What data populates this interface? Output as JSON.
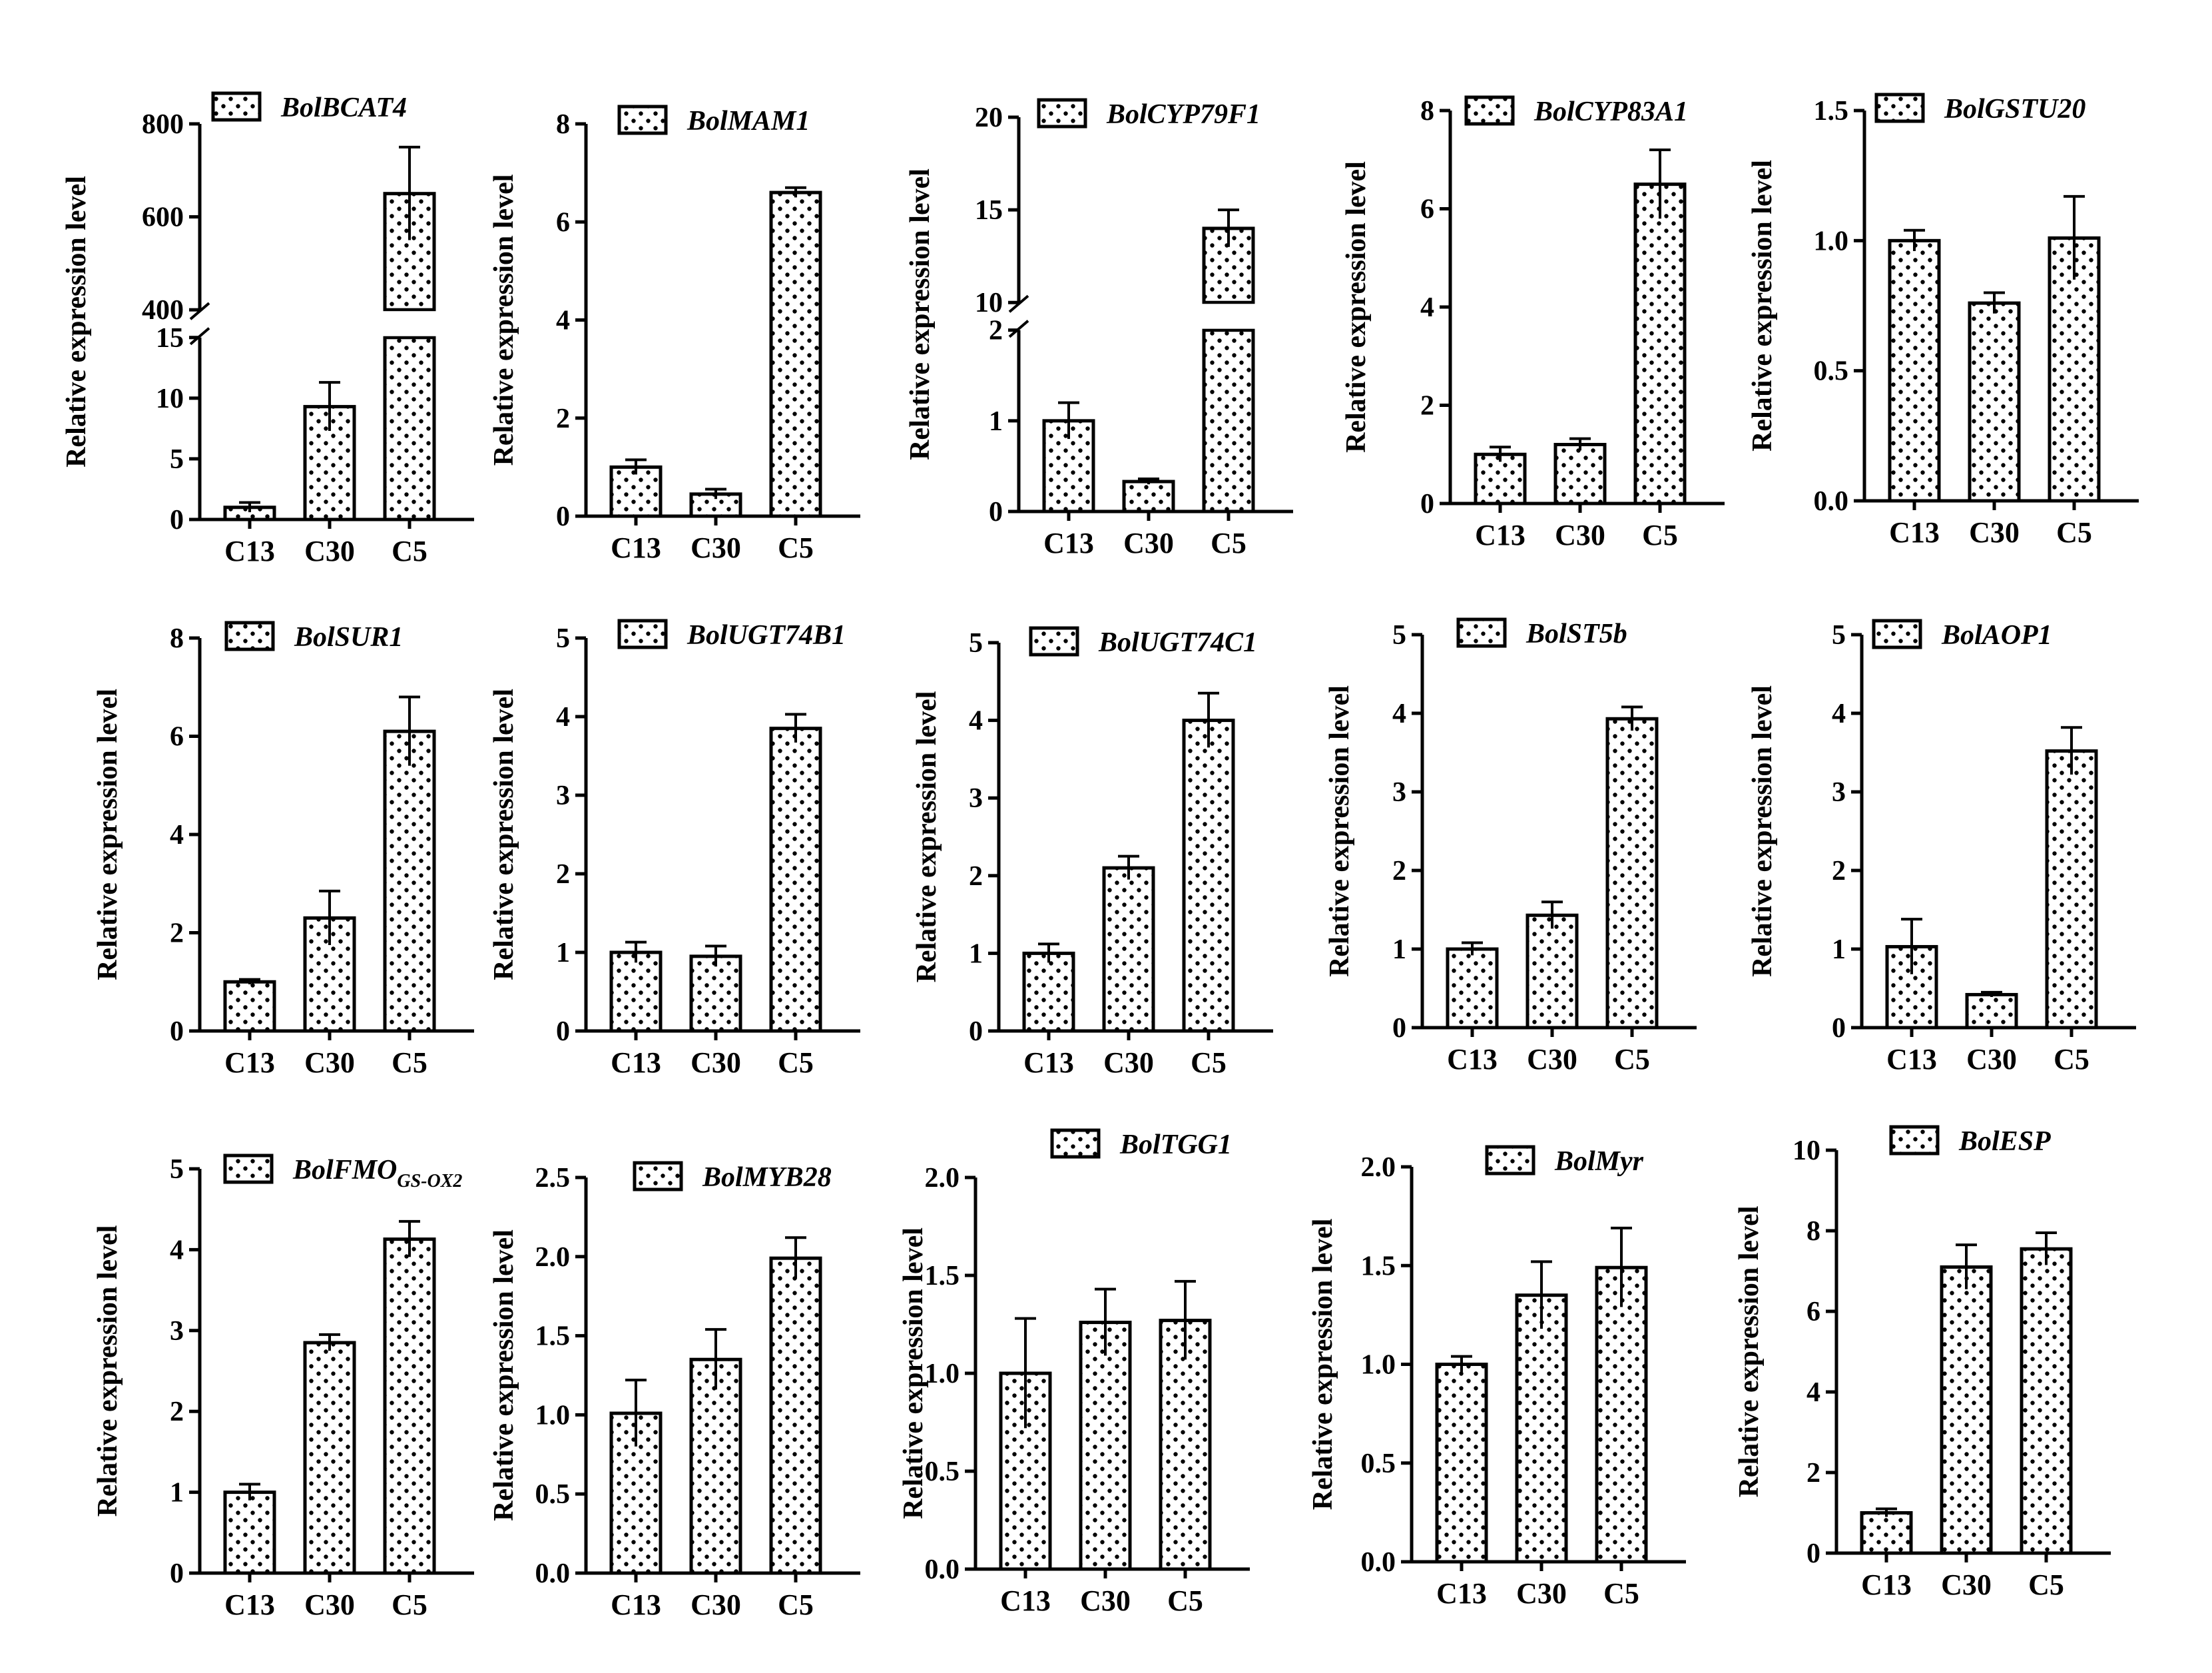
{
  "chart_data": [
    {
      "type": "bar",
      "title": "BolBCAT4",
      "legend": "BolBCAT4",
      "ylabel": "Relative expression level",
      "categories": [
        "C13",
        "C30",
        "C5"
      ],
      "values": [
        1.0,
        9.3,
        650
      ],
      "errors": [
        0.4,
        2.0,
        100
      ],
      "broken_axis": {
        "lower": [
          0,
          15
        ],
        "upper": [
          400,
          800
        ],
        "lower_ticks": [
          "0",
          "5",
          "10",
          "15"
        ],
        "upper_ticks": [
          "400",
          "600",
          "800"
        ]
      }
    },
    {
      "type": "bar",
      "title": "BolMAM1",
      "legend": "BolMAM1",
      "ylabel": "Relative expression level",
      "categories": [
        "C13",
        "C30",
        "C5"
      ],
      "values": [
        1.0,
        0.45,
        6.6
      ],
      "errors": [
        0.15,
        0.1,
        0.1
      ],
      "ylim": [
        0,
        8
      ],
      "ticks": [
        "0",
        "2",
        "4",
        "6",
        "8"
      ]
    },
    {
      "type": "bar",
      "title": "BolCYP79F1",
      "legend": "BolCYP79F1",
      "ylabel": "Relative expression level",
      "categories": [
        "C13",
        "C30",
        "C5"
      ],
      "values": [
        1.0,
        0.33,
        14
      ],
      "errors": [
        0.2,
        0.03,
        1.0
      ],
      "broken_axis": {
        "lower": [
          0,
          2
        ],
        "upper": [
          10,
          20
        ],
        "lower_ticks": [
          "0",
          "1",
          "2"
        ],
        "upper_ticks": [
          "10",
          "15",
          "20"
        ]
      }
    },
    {
      "type": "bar",
      "title": "BolCYP83A1",
      "legend": "BolCYP83A1",
      "ylabel": "Relative expression level",
      "categories": [
        "C13",
        "C30",
        "C5"
      ],
      "values": [
        1.0,
        1.2,
        6.5
      ],
      "errors": [
        0.15,
        0.12,
        0.7
      ],
      "ylim": [
        0,
        8
      ],
      "ticks": [
        "0",
        "2",
        "4",
        "6",
        "8"
      ]
    },
    {
      "type": "bar",
      "title": "BolGSTU20",
      "legend": "BolGSTU20",
      "ylabel": "Relative expression level",
      "categories": [
        "C13",
        "C30",
        "C5"
      ],
      "values": [
        1.0,
        0.76,
        1.01
      ],
      "errors": [
        0.04,
        0.04,
        0.16
      ],
      "ylim": [
        0,
        1.5
      ],
      "ticks": [
        "0.0",
        "0.5",
        "1.0",
        "1.5"
      ]
    },
    {
      "type": "bar",
      "title": "BolSUR1",
      "legend": "BolSUR1",
      "ylabel": "Relative expression level",
      "categories": [
        "C13",
        "C30",
        "C5"
      ],
      "values": [
        1.0,
        2.3,
        6.1
      ],
      "errors": [
        0.05,
        0.55,
        0.7
      ],
      "ylim": [
        0,
        8
      ],
      "ticks": [
        "0",
        "2",
        "4",
        "6",
        "8"
      ]
    },
    {
      "type": "bar",
      "title": "BolUGT74B1",
      "legend": "BolUGT74B1",
      "ylabel": "Relative expression level",
      "categories": [
        "C13",
        "C30",
        "C5"
      ],
      "values": [
        1.0,
        0.95,
        3.85
      ],
      "errors": [
        0.13,
        0.13,
        0.18
      ],
      "ylim": [
        0,
        5
      ],
      "ticks": [
        "0",
        "1",
        "2",
        "3",
        "4",
        "5"
      ]
    },
    {
      "type": "bar",
      "title": "BolUGT74C1",
      "legend": "BolUGT74C1",
      "ylabel": "Relative expression level",
      "categories": [
        "C13",
        "C30",
        "C5"
      ],
      "values": [
        1.0,
        2.1,
        4.0
      ],
      "errors": [
        0.12,
        0.15,
        0.35
      ],
      "ylim": [
        0,
        5
      ],
      "ticks": [
        "0",
        "1",
        "2",
        "3",
        "4",
        "5"
      ]
    },
    {
      "type": "bar",
      "title": "BolST5b",
      "legend": "BolST5b",
      "ylabel": "Relative expression level",
      "categories": [
        "C13",
        "C30",
        "C5"
      ],
      "values": [
        1.0,
        1.43,
        3.93
      ],
      "errors": [
        0.08,
        0.17,
        0.15
      ],
      "ylim": [
        0,
        5
      ],
      "ticks": [
        "0",
        "1",
        "2",
        "3",
        "4",
        "5"
      ]
    },
    {
      "type": "bar",
      "title": "BolAOP1",
      "legend": "BolAOP1",
      "ylabel": "Relative expression level",
      "categories": [
        "C13",
        "C30",
        "C5"
      ],
      "values": [
        1.03,
        0.42,
        3.52
      ],
      "errors": [
        0.35,
        0.03,
        0.3
      ],
      "ylim": [
        0,
        5
      ],
      "ticks": [
        "0",
        "1",
        "2",
        "3",
        "4",
        "5"
      ]
    },
    {
      "type": "bar",
      "title": "BolFMOGS-OX2",
      "legend": "BolFMO",
      "legend_sub": "GS-OX2",
      "ylabel": "Relative expression level",
      "categories": [
        "C13",
        "C30",
        "C5"
      ],
      "values": [
        1.0,
        2.85,
        4.13
      ],
      "errors": [
        0.1,
        0.1,
        0.22
      ],
      "ylim": [
        0,
        5
      ],
      "ticks": [
        "0",
        "1",
        "2",
        "3",
        "4",
        "5"
      ]
    },
    {
      "type": "bar",
      "title": "BolMYB28",
      "legend": "BolMYB28",
      "ylabel": "Relative expression level",
      "categories": [
        "C13",
        "C30",
        "C5"
      ],
      "values": [
        1.01,
        1.35,
        1.99
      ],
      "errors": [
        0.21,
        0.19,
        0.13
      ],
      "ylim": [
        0,
        2.5
      ],
      "ticks": [
        "0.0",
        "0.5",
        "1.0",
        "1.5",
        "2.0",
        "2.5"
      ]
    },
    {
      "type": "bar",
      "title": "BolTGG1",
      "legend": "BolTGG1",
      "ylabel": "Relative expression level",
      "categories": [
        "C13",
        "C30",
        "C5"
      ],
      "values": [
        1.0,
        1.26,
        1.27
      ],
      "errors": [
        0.28,
        0.17,
        0.2
      ],
      "ylim": [
        0,
        2
      ],
      "ticks": [
        "0.0",
        "0.5",
        "1.0",
        "1.5",
        "2.0"
      ]
    },
    {
      "type": "bar",
      "title": "BolMyr",
      "legend": "BolMyr",
      "ylabel": "Relative expression level",
      "categories": [
        "C13",
        "C30",
        "C5"
      ],
      "values": [
        1.0,
        1.35,
        1.49
      ],
      "errors": [
        0.04,
        0.17,
        0.2
      ],
      "ylim": [
        0,
        2
      ],
      "ticks": [
        "0.0",
        "0.5",
        "1.0",
        "1.5",
        "2.0"
      ]
    },
    {
      "type": "bar",
      "title": "BolESP",
      "legend": "BolESP",
      "ylabel": "Relative expression level",
      "categories": [
        "C13",
        "C30",
        "C5"
      ],
      "values": [
        1.0,
        7.1,
        7.55
      ],
      "errors": [
        0.1,
        0.55,
        0.4
      ],
      "ylim": [
        0,
        10
      ],
      "ticks": [
        "0",
        "2",
        "4",
        "6",
        "8",
        "10"
      ]
    }
  ]
}
